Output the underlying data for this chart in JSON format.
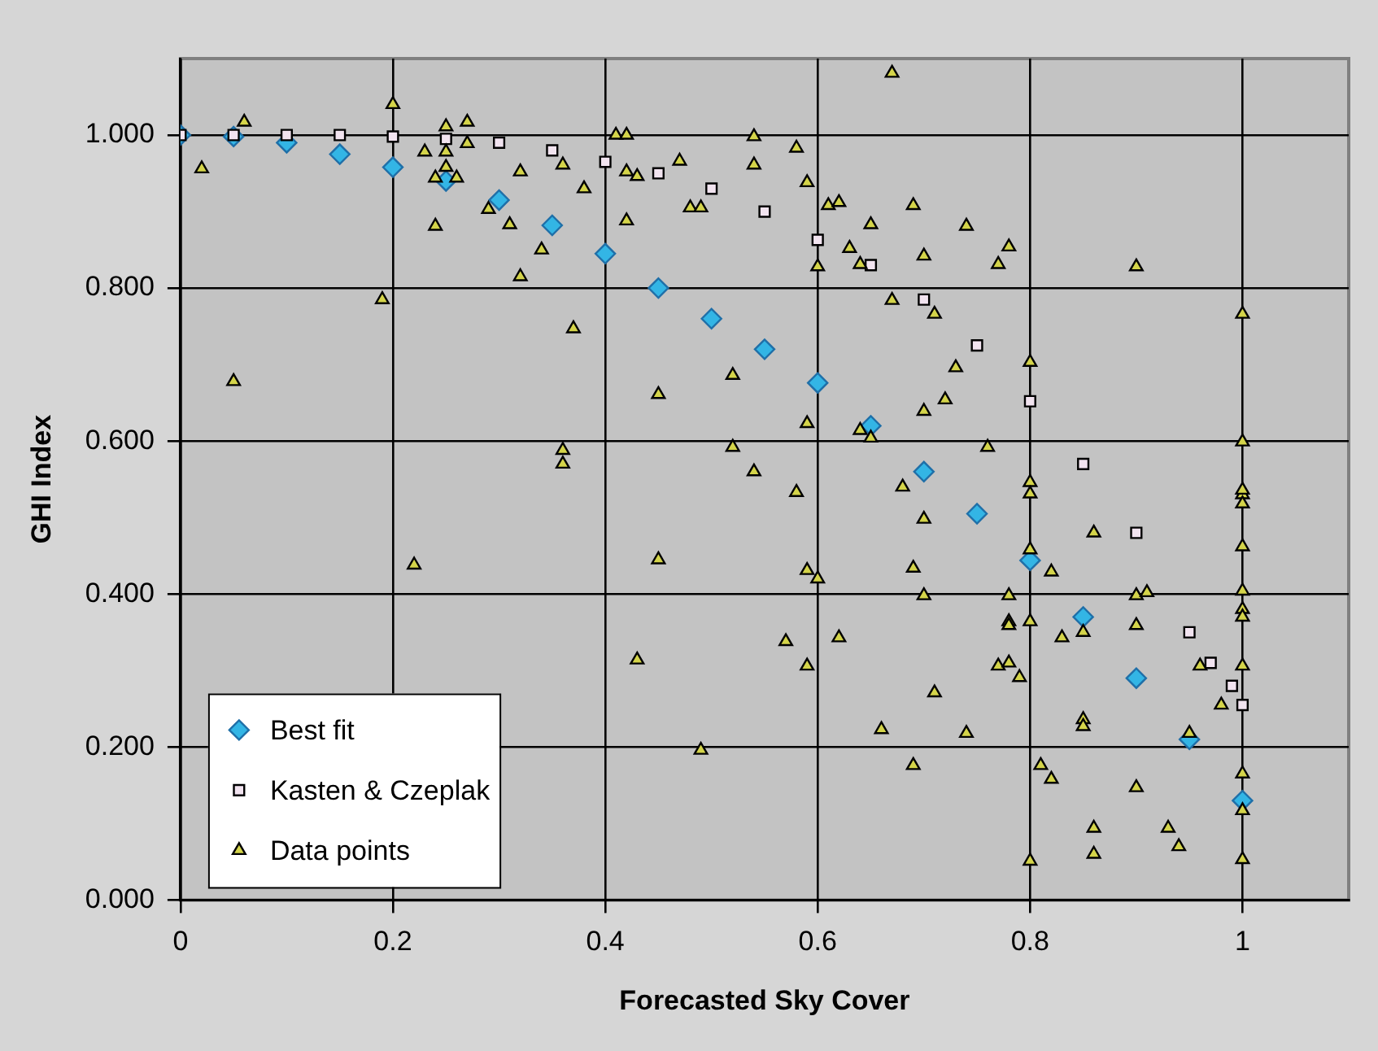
{
  "chart_data": {
    "type": "scatter",
    "xlabel": "Forecasted Sky Cover",
    "ylabel": "GHI Index",
    "xlim": [
      0,
      1.1
    ],
    "ylim": [
      0,
      1.1
    ],
    "xticks": [
      0,
      0.2,
      0.4,
      0.6,
      0.8,
      1
    ],
    "yticks": [
      {
        "value": 0,
        "label": "0.000"
      },
      {
        "value": 0.2,
        "label": "0.200"
      },
      {
        "value": 0.4,
        "label": "0.400"
      },
      {
        "value": 0.6,
        "label": "0.600"
      },
      {
        "value": 0.8,
        "label": "0.800"
      },
      {
        "value": 1,
        "label": "1.000"
      }
    ],
    "grid": true,
    "legend": "bottom left",
    "series": [
      {
        "name": "Best fit",
        "color": "#33b5e5",
        "marker": "diamond",
        "x": [
          0,
          0.05,
          0.1,
          0.15,
          0.2,
          0.25,
          0.3,
          0.35,
          0.4,
          0.45,
          0.5,
          0.55,
          0.6,
          0.65,
          0.7,
          0.75,
          0.8,
          0.85,
          0.9,
          0.95,
          1.0
        ],
        "values": [
          1.0,
          0.998,
          0.99,
          0.975,
          0.958,
          0.94,
          0.915,
          0.882,
          0.845,
          0.8,
          0.76,
          0.72,
          0.676,
          0.62,
          0.56,
          0.505,
          0.444,
          0.37,
          0.29,
          0.21,
          0.13
        ]
      },
      {
        "name": "Kasten & Czeplak",
        "color": "#000000",
        "marker": "square",
        "x": [
          0,
          0.05,
          0.1,
          0.15,
          0.2,
          0.25,
          0.3,
          0.35,
          0.4,
          0.45,
          0.5,
          0.55,
          0.6,
          0.65,
          0.7,
          0.75,
          0.8,
          0.85,
          0.9,
          0.95,
          0.97,
          0.99,
          1.0
        ],
        "values": [
          1.0,
          1.0,
          1.0,
          1.0,
          0.998,
          0.995,
          0.99,
          0.98,
          0.965,
          0.95,
          0.93,
          0.9,
          0.863,
          0.83,
          0.785,
          0.725,
          0.652,
          0.57,
          0.48,
          0.35,
          0.31,
          0.28,
          0.255
        ]
      },
      {
        "name": "Data points",
        "color": "#d4d44a",
        "marker": "triangle",
        "x": [
          0.02,
          0.06,
          0.05,
          0.2,
          0.19,
          0.23,
          0.24,
          0.24,
          0.25,
          0.25,
          0.25,
          0.26,
          0.27,
          0.27,
          0.29,
          0.31,
          0.32,
          0.32,
          0.34,
          0.36,
          0.37,
          0.38,
          0.36,
          0.36,
          0.41,
          0.42,
          0.42,
          0.43,
          0.42,
          0.45,
          0.47,
          0.48,
          0.49,
          0.52,
          0.52,
          0.67,
          0.54,
          0.58,
          0.54,
          0.59,
          0.61,
          0.62,
          0.69,
          0.65,
          0.74,
          0.78,
          0.7,
          0.77,
          0.9,
          0.6,
          0.63,
          0.64,
          0.67,
          0.71,
          1.0,
          0.8,
          0.73,
          0.72,
          0.7,
          0.59,
          0.64,
          0.65,
          0.76,
          1.0,
          0.54,
          0.8,
          1.0,
          0.68,
          0.58,
          0.8,
          1.0,
          1.0,
          0.7,
          0.86,
          1.0,
          0.8,
          0.59,
          0.6,
          0.69,
          0.82,
          0.7,
          0.78,
          0.9,
          0.91,
          1.0,
          1.0,
          1.0,
          0.78,
          0.78,
          0.8,
          0.9,
          0.57,
          0.62,
          0.83,
          0.85,
          0.77,
          0.78,
          0.79,
          0.59,
          0.96,
          1.0,
          0.71,
          0.98,
          0.85,
          0.85,
          0.66,
          0.74,
          0.95,
          0.69,
          0.81,
          0.82,
          1.0,
          0.9,
          1.0,
          0.86,
          0.93,
          0.94,
          0.86,
          0.8,
          1.0,
          0.22,
          0.45,
          0.43,
          0.49
        ],
        "values": [
          0.956,
          1.017,
          0.678,
          1.04,
          0.785,
          0.978,
          0.881,
          0.944,
          1.011,
          0.978,
          0.958,
          0.944,
          1.017,
          0.989,
          0.903,
          0.883,
          0.952,
          0.815,
          0.85,
          0.961,
          0.747,
          0.93,
          0.588,
          0.57,
          1.0,
          1.0,
          0.952,
          0.946,
          0.888,
          0.661,
          0.966,
          0.905,
          0.905,
          0.686,
          0.592,
          1.081,
          0.998,
          0.983,
          0.961,
          0.938,
          0.908,
          0.912,
          0.908,
          0.883,
          0.881,
          0.854,
          0.842,
          0.831,
          0.828,
          0.828,
          0.852,
          0.831,
          0.784,
          0.766,
          0.766,
          0.703,
          0.696,
          0.654,
          0.639,
          0.623,
          0.614,
          0.604,
          0.592,
          0.599,
          0.56,
          0.546,
          0.53,
          0.54,
          0.533,
          0.531,
          0.536,
          0.518,
          0.498,
          0.48,
          0.462,
          0.458,
          0.431,
          0.42,
          0.434,
          0.429,
          0.398,
          0.398,
          0.398,
          0.402,
          0.404,
          0.38,
          0.37,
          0.364,
          0.359,
          0.364,
          0.359,
          0.338,
          0.343,
          0.343,
          0.35,
          0.306,
          0.31,
          0.291,
          0.306,
          0.306,
          0.306,
          0.271,
          0.255,
          0.236,
          0.227,
          0.223,
          0.218,
          0.218,
          0.176,
          0.176,
          0.158,
          0.165,
          0.147,
          0.117,
          0.094,
          0.094,
          0.07,
          0.06,
          0.051,
          0.053,
          0.438,
          0.445,
          0.314,
          0.196
        ]
      }
    ]
  }
}
